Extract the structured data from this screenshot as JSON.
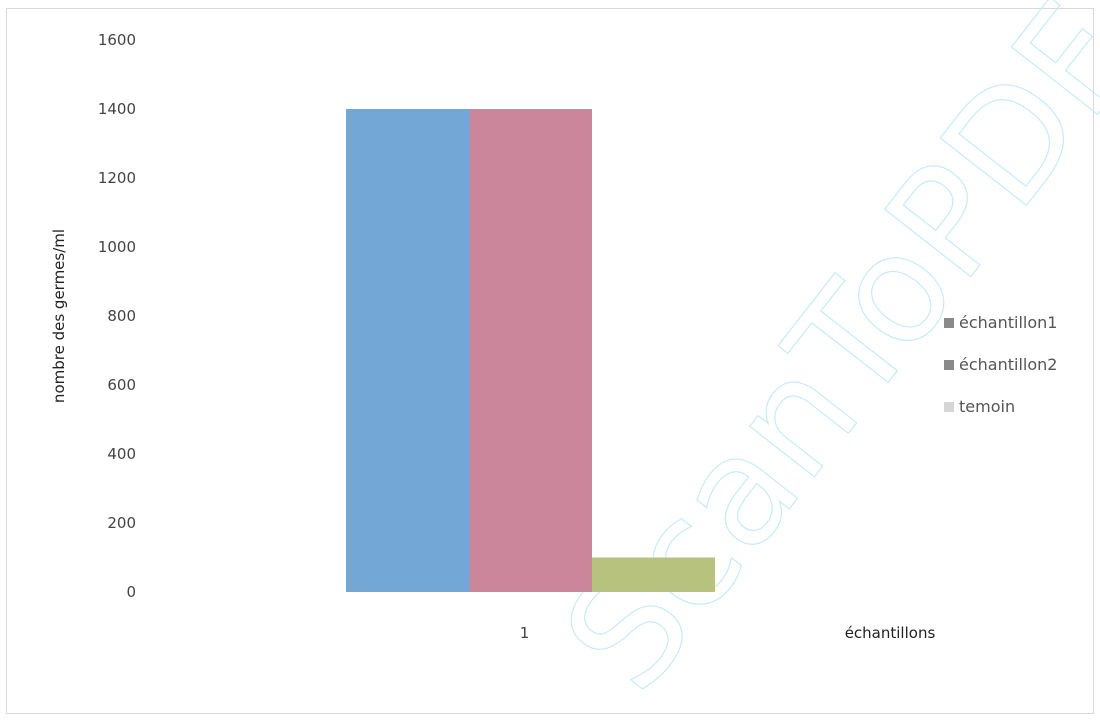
{
  "watermark": "ScanToPDF",
  "chart_data": {
    "type": "bar",
    "title": "",
    "xlabel": "échantillons",
    "ylabel": "nombre des germes/ml",
    "categories": [
      "1"
    ],
    "ylim": [
      0,
      1600
    ],
    "yticks": [
      0,
      200,
      400,
      600,
      800,
      1000,
      1200,
      1400,
      1600
    ],
    "series": [
      {
        "name": "échantillon1",
        "values": [
          1400
        ],
        "color": "#72a7d6"
      },
      {
        "name": "échantillon2",
        "values": [
          1400
        ],
        "color": "#cc869b"
      },
      {
        "name": "temoin",
        "values": [
          100
        ],
        "color": "#b7c27e"
      }
    ],
    "grid": false,
    "legend_position": "right"
  }
}
